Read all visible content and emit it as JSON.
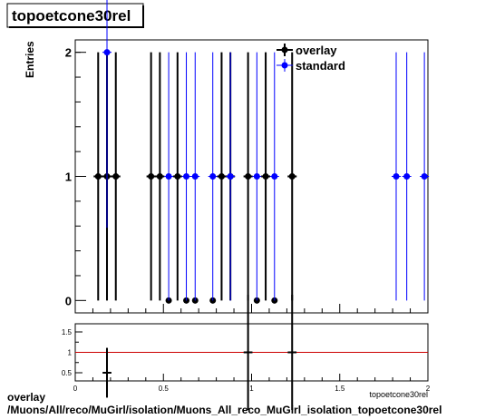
{
  "title": "topoetcone30rel",
  "footer": {
    "line1": "overlay",
    "line2": "/Muons/All/reco/MuGirl/isolation/Muons_All_reco_MuGirl_isolation_topoetcone30rel"
  },
  "colors": {
    "overlay": "#000000",
    "standard": "#0000ff",
    "ratio_line": "#cc0000"
  },
  "chart_data": [
    {
      "type": "scatter",
      "title": "topoetcone30rel",
      "ylabel": "Entries",
      "xlabel": "topoetcone30rel",
      "xlim": [
        0,
        2
      ],
      "ylim": [
        -0.1,
        2.1
      ],
      "yticks": [
        0,
        1,
        2
      ],
      "legend_position": "top-right",
      "series": [
        {
          "name": "overlay",
          "color": "#000000",
          "x": [
            0.13,
            0.18,
            0.23,
            0.43,
            0.48,
            0.53,
            0.58,
            0.63,
            0.68,
            0.78,
            0.83,
            0.88,
            0.98,
            1.03,
            1.08,
            1.13,
            1.23
          ],
          "y": [
            1,
            1,
            1,
            1,
            1,
            0,
            1,
            0,
            0,
            0,
            1,
            1,
            1,
            0,
            1,
            0,
            1
          ],
          "yerr": [
            1,
            1,
            1,
            1,
            1,
            0,
            1,
            0,
            0,
            0,
            1,
            1,
            1,
            0,
            1,
            0,
            1
          ]
        },
        {
          "name": "standard",
          "color": "#0000ff",
          "x": [
            0.18,
            0.53,
            0.63,
            0.68,
            0.78,
            0.88,
            1.03,
            1.13,
            1.82,
            1.88,
            1.98
          ],
          "y": [
            2,
            1,
            1,
            1,
            1,
            1,
            1,
            1,
            1,
            1,
            1
          ],
          "yerr": [
            1.414,
            1,
            1,
            1,
            1,
            1,
            1,
            1,
            1,
            1,
            1
          ]
        }
      ]
    },
    {
      "type": "scatter",
      "xlim": [
        0,
        2
      ],
      "ylim": [
        0.3,
        1.7
      ],
      "xticks": [
        0,
        0.5,
        1,
        1.5,
        2
      ],
      "xtick_labels": [
        "0",
        "0.5",
        "1",
        "1.5",
        "2"
      ],
      "yticks": [
        0.5,
        1,
        1.5
      ],
      "ytick_labels": [
        "0.5",
        "1",
        "1.5"
      ],
      "reference_line": 1,
      "series": [
        {
          "x": [
            0.18,
            0.98,
            1.23
          ],
          "y": [
            0.5,
            1,
            1
          ],
          "yerr": [
            0.61,
            1.41,
            1.41
          ],
          "xerr": 0.025
        }
      ]
    }
  ]
}
